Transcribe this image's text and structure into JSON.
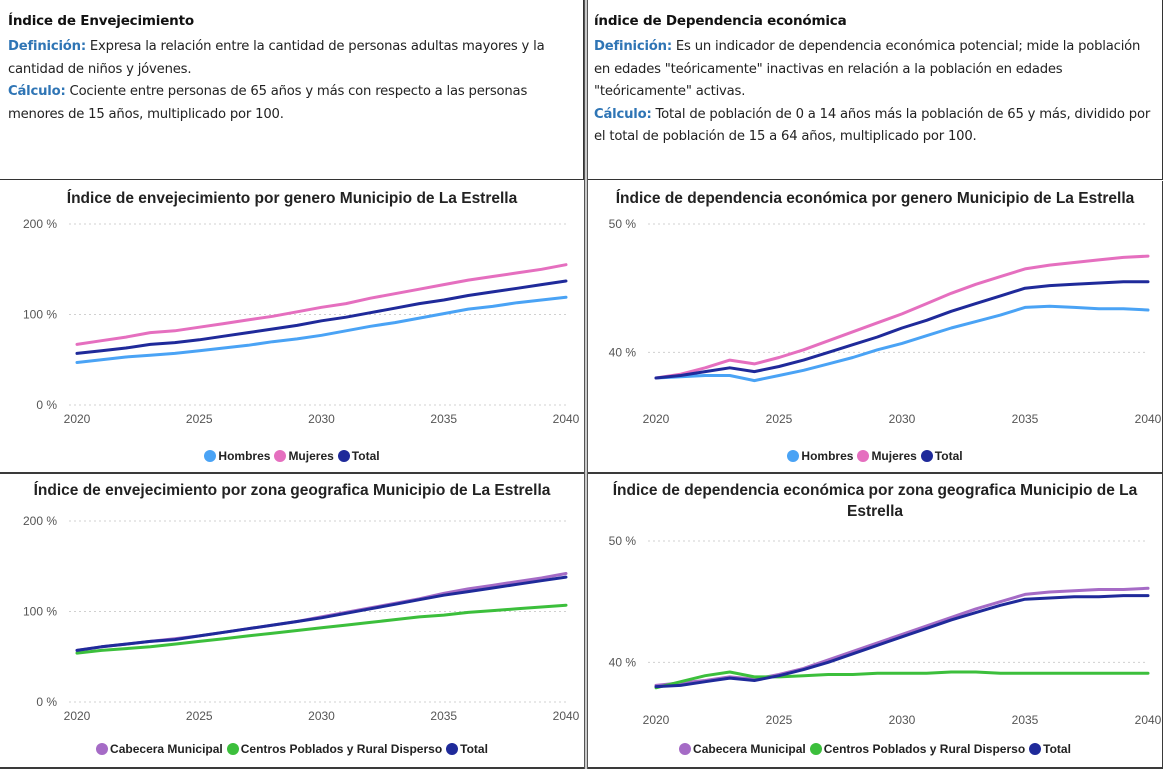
{
  "info_left": {
    "title": "Índice de Envejecimiento",
    "def_label": "Definición:",
    "def_text": " Expresa la relación entre la cantidad de personas adultas mayores y la cantidad de niños y jóvenes.",
    "calc_label": "Cálculo:",
    "calc_text": " Cociente entre personas de 65 años y más con respecto a las personas menores de 15 años, multiplicado por 100."
  },
  "info_right": {
    "title": "índice de Dependencia económica",
    "def_label": "Definición:",
    "def_text": " Es un indicador de dependencia económica potencial; mide la población en edades \"teóricamente\" inactivas en relación a la población en edades \"teóricamente\" activas.",
    "calc_label": "Cálculo:",
    "calc_text": " Total de población de 0 a 14 años más la población de 65 y más, dividido por el total de población de 15 a 64 años, multiplicado por 100."
  },
  "colors": {
    "Hombres": "#4aa3f5",
    "Mujeres": "#e56fbf",
    "Total": "#1f2a9a",
    "Cabecera Municipal": "#a56bc6",
    "Centros Poblados y Rural Disperso": "#3cbf3c"
  },
  "chart_data": [
    {
      "type": "line",
      "title": "Índice de envejecimiento por genero Municipio de La Estrella",
      "yticks": [
        "0 %",
        "100 %",
        "200 %"
      ],
      "ytick_values": [
        0,
        100,
        200
      ],
      "ylim": [
        0,
        200
      ],
      "xticks": [
        "2020",
        "2025",
        "2030",
        "2035",
        "2040"
      ],
      "xtick_values": [
        2020,
        2025,
        2030,
        2035,
        2040
      ],
      "xlim": [
        2020,
        2040
      ],
      "x": [
        2020,
        2021,
        2022,
        2023,
        2024,
        2025,
        2026,
        2027,
        2028,
        2029,
        2030,
        2031,
        2032,
        2033,
        2034,
        2035,
        2036,
        2037,
        2038,
        2039,
        2040
      ],
      "series": [
        {
          "name": "Hombres",
          "values": [
            47,
            50,
            53,
            55,
            57,
            60,
            63,
            66,
            70,
            73,
            77,
            82,
            87,
            91,
            96,
            101,
            106,
            109,
            113,
            116,
            119
          ]
        },
        {
          "name": "Mujeres",
          "values": [
            67,
            71,
            75,
            80,
            82,
            86,
            90,
            94,
            98,
            103,
            108,
            112,
            118,
            123,
            128,
            133,
            138,
            142,
            146,
            150,
            155
          ]
        },
        {
          "name": "Total",
          "values": [
            57,
            60,
            63,
            67,
            69,
            72,
            76,
            80,
            84,
            88,
            93,
            97,
            102,
            107,
            112,
            116,
            121,
            125,
            129,
            133,
            137
          ]
        }
      ],
      "legend": [
        "Hombres",
        "Mujeres",
        "Total"
      ],
      "legend_position": "bottom-center",
      "grid": true
    },
    {
      "type": "line",
      "title": "Índice de dependencia económica por genero Municipio de La Estrella",
      "yticks": [
        "40 %",
        "50 %"
      ],
      "ytick_values": [
        40,
        50
      ],
      "ylim": [
        35.9,
        50
      ],
      "xticks": [
        "2020",
        "2025",
        "2030",
        "2035",
        "2040"
      ],
      "xtick_values": [
        2020,
        2025,
        2030,
        2035,
        2040
      ],
      "xlim": [
        2020,
        2040
      ],
      "x": [
        2020,
        2021,
        2022,
        2023,
        2024,
        2025,
        2026,
        2027,
        2028,
        2029,
        2030,
        2031,
        2032,
        2033,
        2034,
        2035,
        2036,
        2037,
        2038,
        2039,
        2040
      ],
      "series": [
        {
          "name": "Hombres",
          "values": [
            38.0,
            38.1,
            38.2,
            38.2,
            37.8,
            38.2,
            38.6,
            39.1,
            39.6,
            40.2,
            40.7,
            41.3,
            41.9,
            42.4,
            42.9,
            43.5,
            43.6,
            43.5,
            43.4,
            43.4,
            43.3
          ]
        },
        {
          "name": "Mujeres",
          "values": [
            38.0,
            38.3,
            38.8,
            39.4,
            39.1,
            39.6,
            40.2,
            40.9,
            41.6,
            42.3,
            43.0,
            43.8,
            44.6,
            45.3,
            45.9,
            46.5,
            46.8,
            47.0,
            47.2,
            47.4,
            47.5
          ]
        },
        {
          "name": "Total",
          "values": [
            38.0,
            38.2,
            38.5,
            38.8,
            38.5,
            38.9,
            39.4,
            40.0,
            40.6,
            41.2,
            41.9,
            42.5,
            43.2,
            43.8,
            44.4,
            45.0,
            45.2,
            45.3,
            45.4,
            45.5,
            45.5
          ]
        }
      ],
      "legend": [
        "Hombres",
        "Mujeres",
        "Total"
      ],
      "legend_position": "bottom-center",
      "grid": true
    },
    {
      "type": "line",
      "title": "Índice de envejecimiento por zona geografica Municipio de La Estrella",
      "yticks": [
        "0 %",
        "100 %",
        "200 %"
      ],
      "ytick_values": [
        0,
        100,
        200
      ],
      "ylim": [
        0,
        200
      ],
      "xticks": [
        "2020",
        "2025",
        "2030",
        "2035",
        "2040"
      ],
      "xtick_values": [
        2020,
        2025,
        2030,
        2035,
        2040
      ],
      "xlim": [
        2020,
        2040
      ],
      "x": [
        2020,
        2021,
        2022,
        2023,
        2024,
        2025,
        2026,
        2027,
        2028,
        2029,
        2030,
        2031,
        2032,
        2033,
        2034,
        2035,
        2036,
        2037,
        2038,
        2039,
        2040
      ],
      "series": [
        {
          "name": "Cabecera Municipal",
          "values": [
            57,
            61,
            64,
            67,
            70,
            73,
            77,
            81,
            85,
            89,
            94,
            99,
            104,
            109,
            114,
            120,
            125,
            129,
            133,
            137,
            142
          ]
        },
        {
          "name": "Centros Poblados y Rural Disperso",
          "values": [
            54,
            57,
            59,
            61,
            64,
            67,
            70,
            73,
            76,
            79,
            82,
            85,
            88,
            91,
            94,
            96,
            99,
            101,
            103,
            105,
            107
          ]
        },
        {
          "name": "Total",
          "values": [
            57,
            61,
            64,
            67,
            69,
            73,
            77,
            81,
            85,
            89,
            93,
            98,
            103,
            108,
            113,
            118,
            122,
            126,
            130,
            134,
            138
          ]
        }
      ],
      "legend": [
        "Cabecera Municipal",
        "Centros Poblados y Rural Disperso",
        "Total"
      ],
      "legend_position": "bottom-center",
      "grid": true
    },
    {
      "type": "line",
      "title": "Índice de dependencia económica por zona geografica Municipio de La Estrella",
      "yticks": [
        "40 %",
        "50 %"
      ],
      "ytick_values": [
        40,
        50
      ],
      "ylim": [
        36.4,
        50
      ],
      "xticks": [
        "2020",
        "2025",
        "2030",
        "2035",
        "2040"
      ],
      "xtick_values": [
        2020,
        2025,
        2030,
        2035,
        2040
      ],
      "xlim": [
        2020,
        2040
      ],
      "x": [
        2020,
        2021,
        2022,
        2023,
        2024,
        2025,
        2026,
        2027,
        2028,
        2029,
        2030,
        2031,
        2032,
        2033,
        2034,
        2035,
        2036,
        2037,
        2038,
        2039,
        2040
      ],
      "series": [
        {
          "name": "Cabecera Municipal",
          "values": [
            38.1,
            38.3,
            38.5,
            38.8,
            38.6,
            39.0,
            39.5,
            40.2,
            40.9,
            41.6,
            42.3,
            43.0,
            43.7,
            44.4,
            45.0,
            45.6,
            45.8,
            45.9,
            46.0,
            46.0,
            46.1
          ]
        },
        {
          "name": "Centros Poblados y Rural Disperso",
          "values": [
            37.9,
            38.4,
            38.9,
            39.2,
            38.8,
            38.8,
            38.9,
            39.0,
            39.0,
            39.1,
            39.1,
            39.1,
            39.2,
            39.2,
            39.1,
            39.1,
            39.1,
            39.1,
            39.1,
            39.1,
            39.1
          ]
        },
        {
          "name": "Total",
          "values": [
            38.0,
            38.1,
            38.4,
            38.7,
            38.5,
            38.9,
            39.4,
            40.0,
            40.7,
            41.4,
            42.1,
            42.8,
            43.5,
            44.1,
            44.7,
            45.2,
            45.3,
            45.4,
            45.4,
            45.5,
            45.5
          ]
        }
      ],
      "legend": [
        "Cabecera Municipal",
        "Centros Poblados y Rural Disperso",
        "Total"
      ],
      "legend_position": "bottom-center",
      "grid": true
    }
  ]
}
